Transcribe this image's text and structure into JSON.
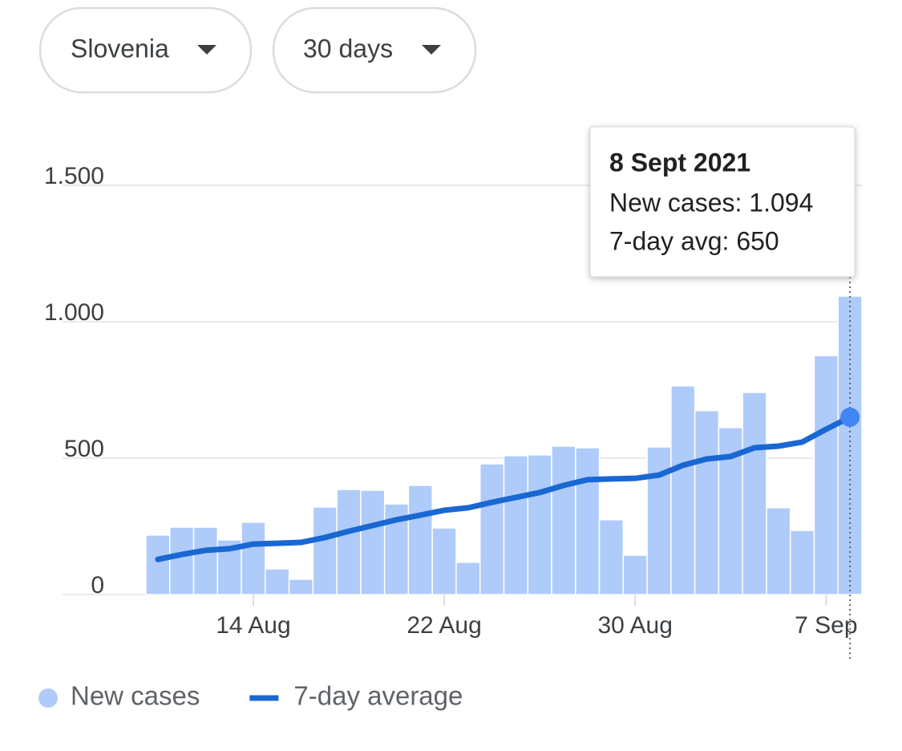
{
  "controls": [
    "Slovenia",
    "30 days"
  ],
  "chart_data": {
    "type": "bar",
    "categories": [
      null,
      null,
      null,
      null,
      "14 Aug",
      null,
      null,
      null,
      null,
      null,
      null,
      null,
      "22 Aug",
      null,
      null,
      null,
      null,
      null,
      null,
      null,
      "30 Aug",
      null,
      null,
      null,
      null,
      null,
      null,
      null,
      "7 Sep",
      null
    ],
    "series": [
      {
        "name": "New cases",
        "type": "bar",
        "color": "#aecbfa",
        "values": [
          218,
          247,
          247,
          200,
          265,
          94,
          56,
          321,
          385,
          382,
          332,
          400,
          244,
          118,
          479,
          509,
          512,
          544,
          538,
          274,
          144,
          541,
          765,
          674,
          612,
          741,
          318,
          235,
          876,
          1094
        ]
      },
      {
        "name": "7-day average",
        "type": "line",
        "color": "#1967d2",
        "values": [
          129,
          147,
          162,
          168,
          185,
          188,
          191,
          209,
          232,
          253,
          274,
          291,
          309,
          318,
          338,
          356,
          374,
          400,
          421,
          424,
          426,
          438,
          474,
          497,
          506,
          538,
          544,
          559,
          606,
          650
        ]
      }
    ],
    "ylim": [
      0,
      1500
    ],
    "yticks": [
      0,
      500,
      {
        "value": 1000,
        "label": "1.000"
      },
      {
        "value": 1500,
        "label": "1.500"
      }
    ],
    "grid": true,
    "legend": "bottom-left",
    "tooltip": {
      "title": "8 Sept 2021",
      "lines": [
        "New cases: 1.094",
        "7-day avg: 650"
      ]
    }
  }
}
